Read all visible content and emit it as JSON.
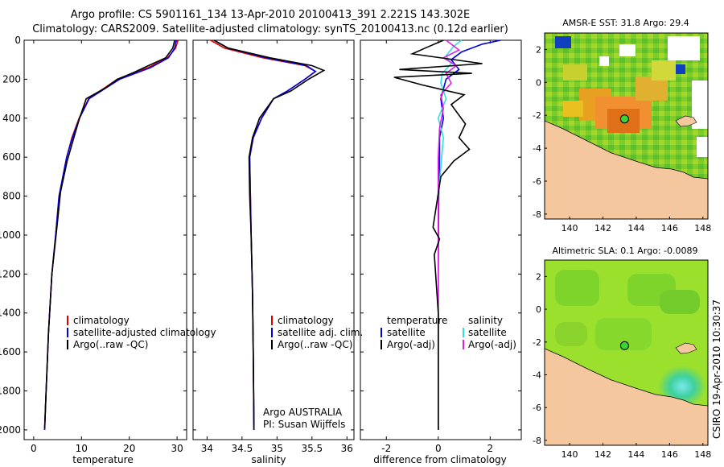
{
  "header": {
    "line1": "Argo profile: CS 5901161_134 13-Apr-2010 20100413_391 2.221S 143.302E",
    "line2": "Climatology: CARS2009. Satellite-adjusted climatology: synTS_20100413.nc (0.12d earlier)"
  },
  "footer": {
    "stamp": "CSIRO 19-Apr-2010 10:30:37"
  },
  "colors": {
    "climatology": "#e00000",
    "satellite": "#0000e0",
    "argo": "#000000",
    "sat_sal": "#30e0e0",
    "argo_sal": "#e020e0",
    "land": "#f5c79e"
  },
  "chart_data": [
    {
      "type": "line",
      "name": "temperature profile",
      "xlabel": "temperature",
      "xlim": [
        -2,
        32
      ],
      "xticks": [
        "0",
        "10",
        "20",
        "30"
      ],
      "ylim": [
        2050,
        0
      ],
      "yticks": [
        "0",
        "200",
        "400",
        "600",
        "800",
        "1000",
        "1200",
        "1400",
        "1600",
        "1800",
        "2000"
      ],
      "legend": [
        "climatology",
        "satellite-adjusted climatology",
        "Argo(..raw -QC)"
      ],
      "series": [
        {
          "name": "climatology",
          "color": "#e00000",
          "x": [
            30.2,
            29.7,
            28,
            24,
            17.5,
            14.5,
            11.5,
            9.5,
            8,
            6.9,
            5.3,
            4.6,
            3.8,
            3.1,
            2.6,
            2.3
          ],
          "y": [
            0,
            40,
            90,
            140,
            200,
            250,
            300,
            400,
            500,
            600,
            800,
            1000,
            1200,
            1500,
            1800,
            2000
          ]
        },
        {
          "name": "satellite-adjusted climatology",
          "color": "#0000e0",
          "x": [
            29.8,
            29.5,
            28.2,
            24.5,
            18,
            14.8,
            11.6,
            9.6,
            8.1,
            6.9,
            5.3,
            4.6,
            3.8,
            3.1,
            2.6,
            2.3
          ],
          "y": [
            0,
            40,
            90,
            140,
            200,
            250,
            300,
            400,
            500,
            600,
            800,
            1000,
            1200,
            1500,
            1800,
            2000
          ]
        },
        {
          "name": "Argo(..raw -QC)",
          "color": "#000000",
          "x": [
            29.5,
            29.1,
            27.6,
            24,
            21,
            17.5,
            15,
            11,
            9.6,
            8.4,
            7,
            5.6,
            4.9,
            3.8,
            3.1,
            2.3
          ],
          "y": [
            0,
            40,
            90,
            130,
            165,
            200,
            245,
            300,
            400,
            500,
            620,
            780,
            950,
            1200,
            1500,
            1990
          ]
        }
      ]
    },
    {
      "type": "line",
      "name": "salinity profile",
      "xlabel": "salinity",
      "xlim": [
        33.8,
        36.1
      ],
      "xticks": [
        "34",
        "34.5",
        "35",
        "35.5",
        "36"
      ],
      "ylim": [
        2050,
        0
      ],
      "legend": [
        "climatology",
        "satellite adj. clim.",
        "Argo(..raw -QC)"
      ],
      "annotations": [
        "Argo AUSTRALIA",
        "PI: Susan Wijffels"
      ],
      "series": [
        {
          "name": "climatology",
          "color": "#e00000",
          "x": [
            34.05,
            34.25,
            34.8,
            35.4,
            35.55,
            35.4,
            35.15,
            34.95,
            34.78,
            34.66,
            34.61,
            34.62,
            34.63,
            34.65,
            34.66,
            34.67
          ],
          "y": [
            0,
            40,
            90,
            130,
            160,
            200,
            260,
            300,
            400,
            500,
            600,
            800,
            1000,
            1300,
            1600,
            2000
          ]
        },
        {
          "name": "satellite adj. clim.",
          "color": "#0000e0",
          "x": [
            34.1,
            34.3,
            34.85,
            35.42,
            35.55,
            35.4,
            35.15,
            34.95,
            34.78,
            34.66,
            34.61,
            34.62,
            34.63,
            34.65,
            34.66,
            34.67
          ],
          "y": [
            0,
            40,
            90,
            130,
            160,
            200,
            260,
            300,
            400,
            500,
            600,
            800,
            1000,
            1300,
            1600,
            2000
          ]
        },
        {
          "name": "Argo(..raw -QC)",
          "color": "#000000",
          "x": [
            34.1,
            34.3,
            34.9,
            35.5,
            35.67,
            35.45,
            35.2,
            34.95,
            34.75,
            34.65,
            34.6,
            34.61,
            34.63,
            34.65,
            34.66,
            34.67
          ],
          "y": [
            0,
            40,
            90,
            130,
            155,
            200,
            260,
            300,
            400,
            500,
            600,
            800,
            1000,
            1300,
            1600,
            2000
          ]
        }
      ]
    },
    {
      "type": "line",
      "name": "difference from climatology",
      "xlabel": "difference from climatology",
      "xlim": [
        -3,
        3.2
      ],
      "xticks": [
        "-2",
        "0",
        "2"
      ],
      "ylim": [
        2050,
        0
      ],
      "legend_left": [
        "temperature",
        "satellite",
        "Argo(-adj)"
      ],
      "legend_right": [
        "salinity",
        "satellite",
        "Argo(-adj)"
      ],
      "series": [
        {
          "name": "satellite (temperature)",
          "color": "#0000e0",
          "x": [
            2.4,
            1.7,
            0.9,
            0.5,
            0.8,
            0.3,
            0.1,
            0.2,
            0.05,
            0.05,
            0.02,
            0.0,
            0.0,
            0.0
          ],
          "y": [
            0,
            20,
            60,
            100,
            150,
            200,
            300,
            400,
            500,
            600,
            800,
            1200,
            1600,
            2000
          ]
        },
        {
          "name": "satellite (salinity)",
          "color": "#30e0e0",
          "x": [
            0.9,
            0.6,
            0.3,
            0.5,
            0.15,
            0.1,
            0.3,
            0.0,
            0.2,
            0.1,
            0.0,
            0.0,
            0.0,
            0.0
          ],
          "y": [
            0,
            30,
            80,
            120,
            170,
            220,
            300,
            400,
            500,
            650,
            800,
            1200,
            1600,
            2000
          ]
        },
        {
          "name": "Argo(-adj) (salinity)",
          "color": "#e020e0",
          "x": [
            0.3,
            0.8,
            0.2,
            0.7,
            0.3,
            0.5,
            0.1,
            0.2,
            0.05,
            0.0,
            0.0,
            0.0,
            0.0,
            0.0
          ],
          "y": [
            0,
            50,
            90,
            130,
            170,
            220,
            280,
            350,
            450,
            600,
            800,
            1200,
            1600,
            2000
          ]
        },
        {
          "name": "Argo(-adj) (temperature)",
          "color": "#000000",
          "x": [
            0.2,
            -0.5,
            -1.0,
            1.7,
            -1.5,
            1.3,
            -1.7,
            -0.6,
            1.0,
            0.5,
            1.05,
            0.8,
            1.2,
            0.6,
            0.1,
            -0.2,
            0.05,
            -0.15,
            0.0,
            0.0
          ],
          "y": [
            0,
            40,
            70,
            120,
            150,
            170,
            190,
            230,
            280,
            330,
            430,
            500,
            560,
            620,
            700,
            960,
            1020,
            1100,
            1400,
            2000
          ]
        }
      ]
    },
    {
      "type": "heatmap",
      "name": "SST map",
      "title": "AMSR-E SST: 31.8 Argo: 29.4",
      "xticks": [
        "140",
        "142",
        "144",
        "146",
        "148"
      ],
      "yticks": [
        "2",
        "0",
        "-2",
        "-4",
        "-6",
        "-8"
      ],
      "xlim": [
        138.5,
        148.3
      ],
      "ylim": [
        -8.3,
        3
      ],
      "marker": {
        "lon": 143.3,
        "lat": -2.221
      }
    },
    {
      "type": "heatmap",
      "name": "SLA map",
      "title": "Altimetric SLA: 0.1 Argo: -0.0089",
      "xticks": [
        "140",
        "142",
        "144",
        "146",
        "148"
      ],
      "yticks": [
        "2",
        "0",
        "-2",
        "-4",
        "-6",
        "-8"
      ],
      "xlim": [
        138.5,
        148.3
      ],
      "ylim": [
        -8.3,
        3
      ],
      "marker": {
        "lon": 143.3,
        "lat": -2.221
      }
    }
  ]
}
